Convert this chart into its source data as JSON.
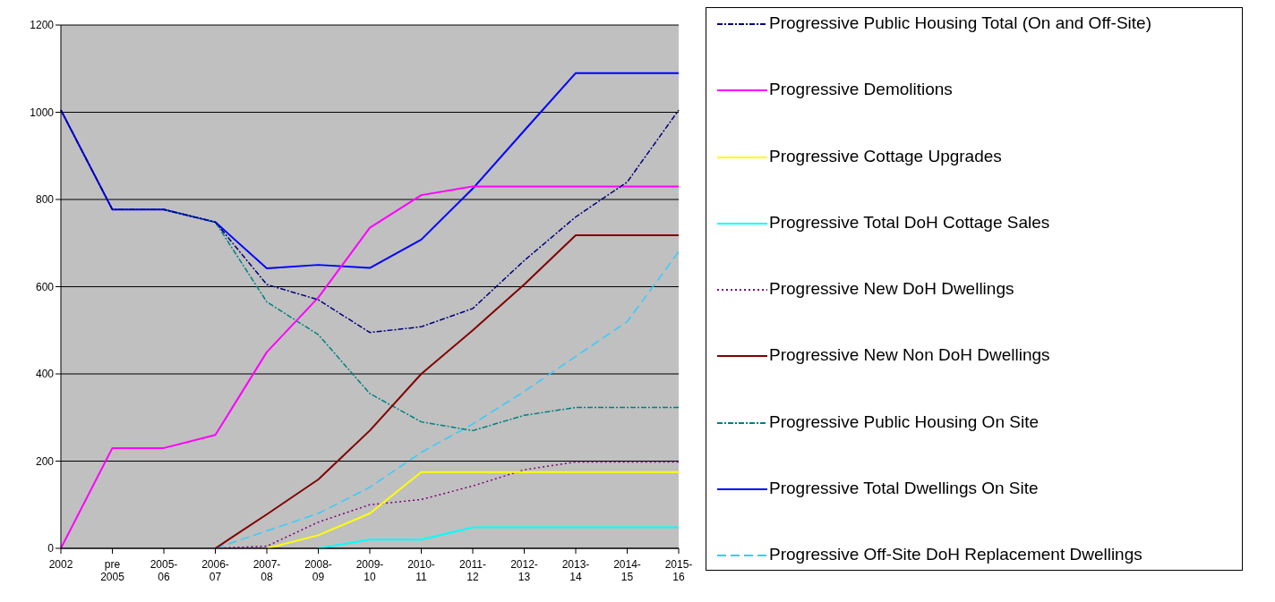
{
  "chart_data": {
    "type": "line",
    "categories": [
      "2002",
      "pre 2005",
      "2005-06",
      "2006-07",
      "2007-08",
      "2008-09",
      "2009-10",
      "2010-11",
      "2011-12",
      "2012-13",
      "2013-14",
      "2014-15",
      "2015-16"
    ],
    "series": [
      {
        "name": "Progressive Public Housing Total (On and Off-Site)",
        "color": "#000080",
        "line_style": "dashdot",
        "values": [
          1005,
          777,
          777,
          748,
          605,
          570,
          495,
          508,
          550,
          660,
          760,
          840,
          1005
        ]
      },
      {
        "name": "Progressive Demolitions",
        "color": "#ff00ff",
        "line_style": "solid",
        "values": [
          0,
          230,
          230,
          260,
          450,
          575,
          735,
          810,
          830,
          830,
          830,
          830,
          830
        ]
      },
      {
        "name": "Progressive Cottage Upgrades",
        "color": "#ffff00",
        "line_style": "solid",
        "values": [
          null,
          null,
          null,
          null,
          0,
          30,
          80,
          175,
          175,
          175,
          175,
          175,
          175
        ]
      },
      {
        "name": "Progressive Total DoH Cottage Sales",
        "color": "#00ffff",
        "line_style": "solid",
        "values": [
          null,
          null,
          null,
          null,
          null,
          0,
          20,
          20,
          48,
          48,
          48,
          48,
          48
        ]
      },
      {
        "name": "Progressive New DoH Dwellings",
        "color": "#800080",
        "line_style": "dotted",
        "values": [
          null,
          null,
          null,
          0,
          5,
          60,
          100,
          112,
          143,
          180,
          198,
          198,
          198
        ]
      },
      {
        "name": "Progressive New Non DoH Dwellings",
        "color": "#800000",
        "line_style": "solid",
        "values": [
          null,
          null,
          null,
          0,
          78,
          158,
          270,
          400,
          500,
          605,
          718,
          718,
          718
        ]
      },
      {
        "name": "Progressive Public Housing On Site",
        "color": "#008080",
        "line_style": "dashdot",
        "values": [
          null,
          null,
          777,
          748,
          565,
          490,
          355,
          290,
          270,
          305,
          323,
          323,
          323
        ]
      },
      {
        "name": "Progressive Total Dwellings On Site",
        "color": "#0000ff",
        "line_style": "solid",
        "values": [
          1005,
          777,
          777,
          748,
          642,
          650,
          643,
          708,
          825,
          958,
          1090,
          1090,
          1090
        ]
      },
      {
        "name": "Progressive Off-Site DoH Replacement Dwellings",
        "color": "#33ccff",
        "line_style": "dashed",
        "values": [
          null,
          null,
          null,
          0,
          40,
          80,
          140,
          220,
          285,
          360,
          440,
          520,
          680
        ]
      }
    ],
    "ylim": [
      0,
      1200
    ],
    "yticks": [
      0,
      200,
      400,
      600,
      800,
      1000,
      1200
    ],
    "grid": "y",
    "legend": "right",
    "marker": "none"
  }
}
